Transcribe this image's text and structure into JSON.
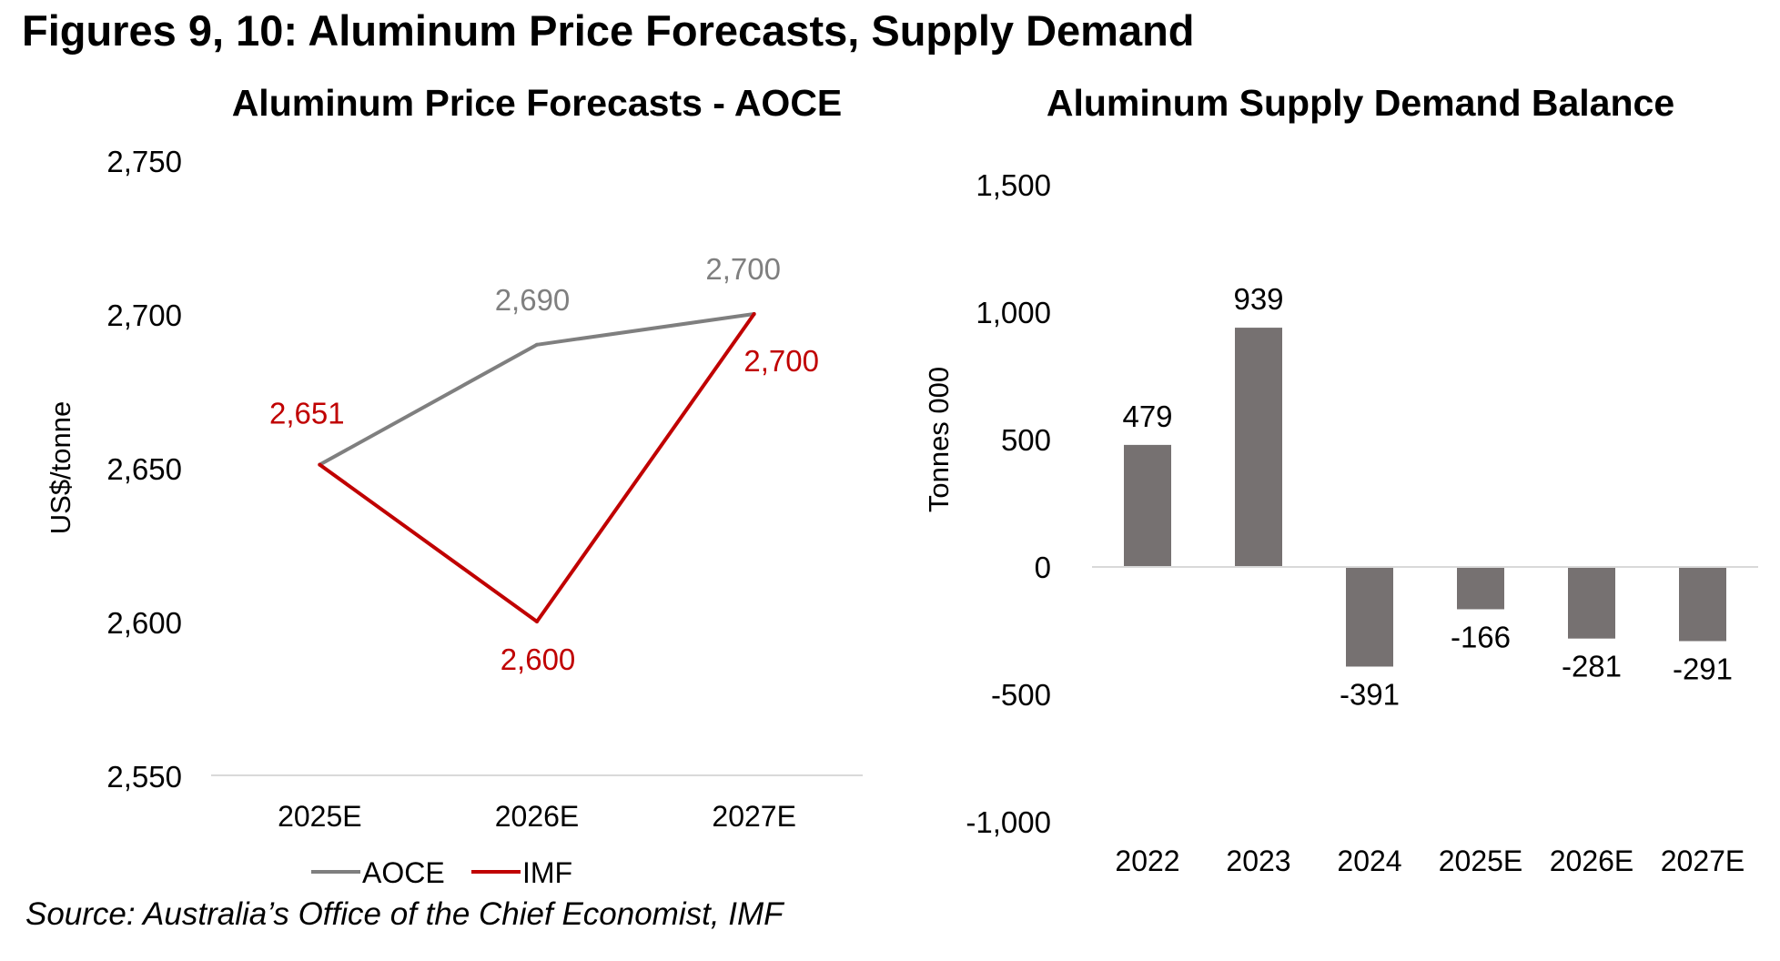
{
  "figure_title": "Figures 9, 10: Aluminum Price Forecasts, Supply Demand",
  "source": "Source: Australia’s Office of the Chief Economist, IMF",
  "colors": {
    "aoce": "#7f7f7f",
    "imf": "#c00000",
    "bar": "#767171",
    "axis": "#d9d9d9",
    "text": "#000000"
  },
  "chart_data": [
    {
      "type": "line",
      "title": "Aluminum Price Forecasts - AOCE",
      "xlabel": "",
      "ylabel": "US$/tonne",
      "categories": [
        "2025E",
        "2026E",
        "2027E"
      ],
      "ylim": [
        2550,
        2750
      ],
      "yticks": [
        2550,
        2600,
        2650,
        2700,
        2750
      ],
      "ytick_labels": [
        "2,550",
        "2,600",
        "2,650",
        "2,700",
        "2,750"
      ],
      "grid": false,
      "legend_position": "bottom",
      "series": [
        {
          "name": "AOCE",
          "color": "#7f7f7f",
          "values": [
            2651,
            2690,
            2700
          ],
          "labels": [
            "",
            "2,690",
            "2,700"
          ]
        },
        {
          "name": "IMF",
          "color": "#c00000",
          "values": [
            2651,
            2600,
            2700
          ],
          "labels": [
            "2,651",
            "2,600",
            "2,700"
          ]
        }
      ]
    },
    {
      "type": "bar",
      "title": "Aluminum Supply Demand Balance",
      "xlabel": "",
      "ylabel": "Tonnes 000",
      "categories": [
        "2022",
        "2023",
        "2024",
        "2025E",
        "2026E",
        "2027E"
      ],
      "values": [
        479,
        939,
        -391,
        -166,
        -281,
        -291
      ],
      "labels": [
        "479",
        "939",
        "-391",
        "-166",
        "-281",
        "-291"
      ],
      "ylim": [
        -1000,
        1500
      ],
      "yticks": [
        -1000,
        -500,
        0,
        500,
        1000,
        1500
      ],
      "ytick_labels": [
        "-1,000",
        "-500",
        "0",
        "500",
        "1,000",
        "1,500"
      ],
      "grid": false
    }
  ]
}
